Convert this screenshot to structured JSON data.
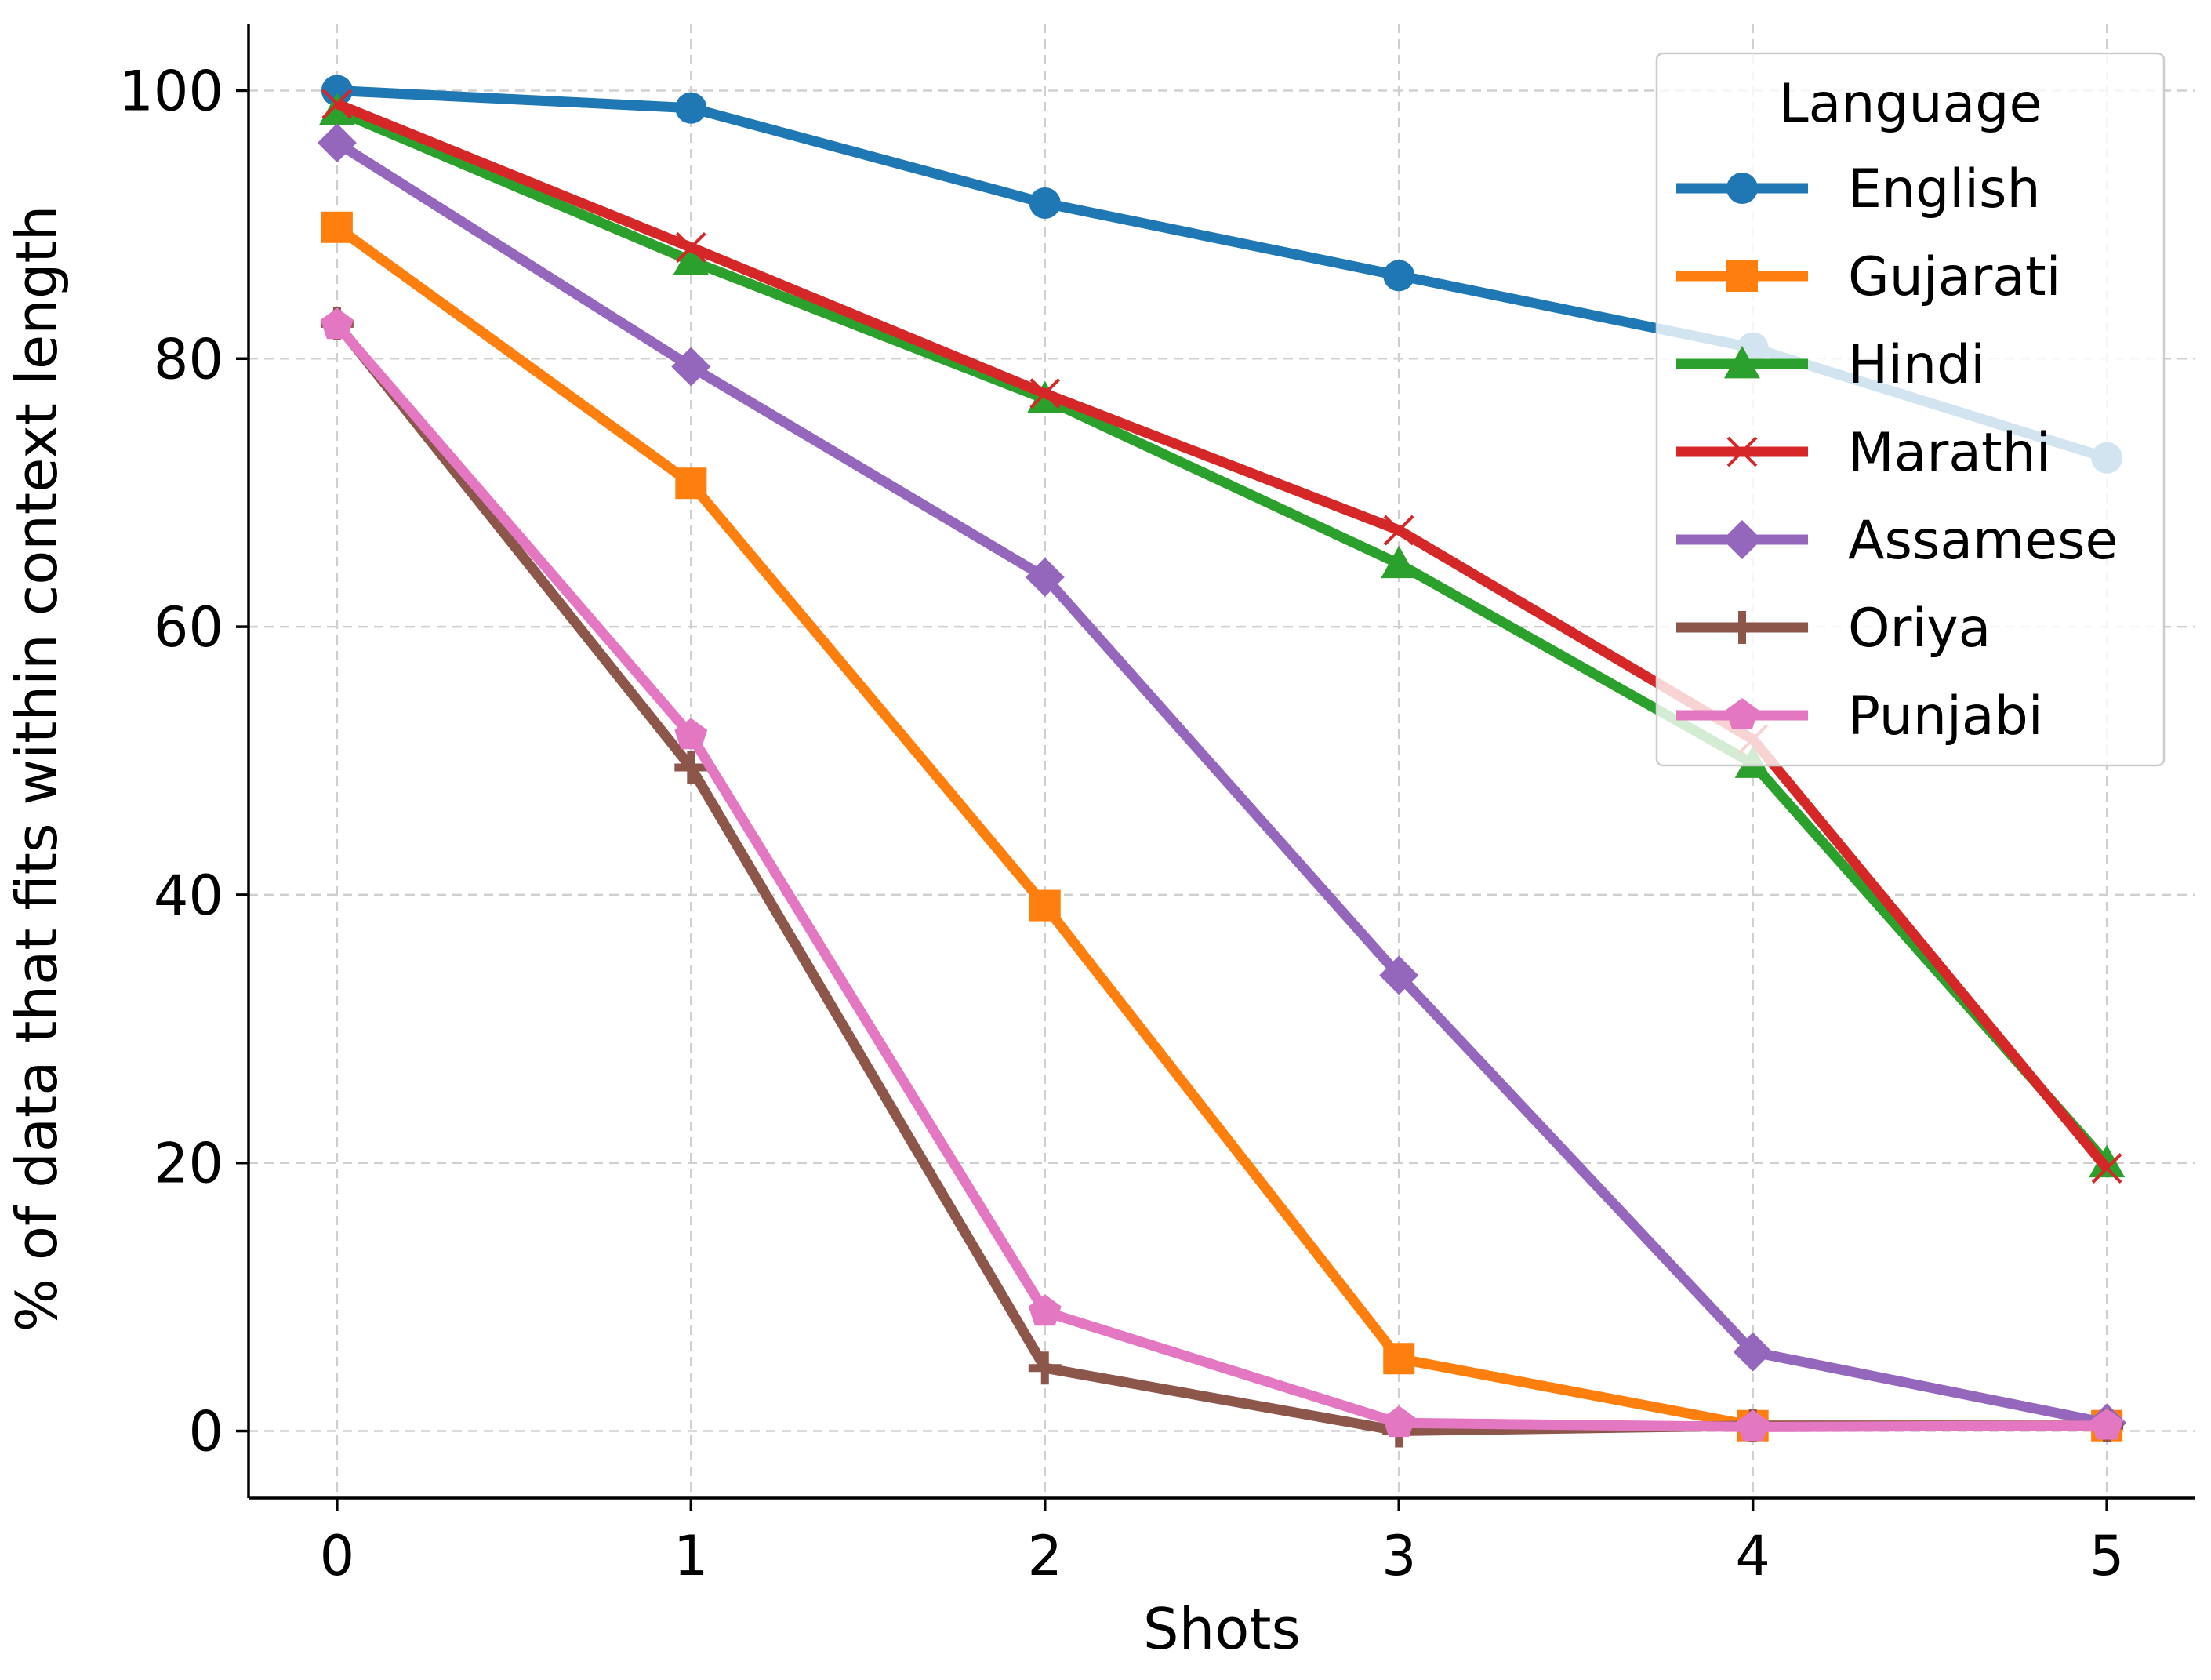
{
  "chart_data": {
    "type": "line",
    "title": "",
    "xlabel": "Shots",
    "ylabel": "% of data that fits within context length",
    "x": [
      0,
      1,
      2,
      3,
      4,
      5
    ],
    "xticks": [
      "0",
      "1",
      "2",
      "3",
      "4",
      "5"
    ],
    "yticks": [
      "0",
      "20",
      "40",
      "60",
      "80",
      "100"
    ],
    "xlim": [
      -0.25,
      5.25
    ],
    "ylim": [
      -5,
      105
    ],
    "grid": true,
    "legend": {
      "title": "Language",
      "placement": "top-right"
    },
    "series": [
      {
        "name": "English",
        "color": "#1f77b4",
        "marker": "circle",
        "values": [
          100,
          98.7,
          91.6,
          86.2,
          80.8,
          72.6
        ]
      },
      {
        "name": "Gujarati",
        "color": "#ff7f0e",
        "marker": "square",
        "values": [
          89.8,
          70.7,
          39.2,
          5.4,
          0.4,
          0.4
        ]
      },
      {
        "name": "Hindi",
        "color": "#2ca02c",
        "marker": "triangle",
        "values": [
          98.5,
          87.3,
          77.0,
          64.7,
          49.8,
          20.0
        ]
      },
      {
        "name": "Marathi",
        "color": "#d62728",
        "marker": "x",
        "values": [
          99.0,
          88.3,
          77.4,
          67.2,
          51.6,
          19.6
        ]
      },
      {
        "name": "Assamese",
        "color": "#9467bd",
        "marker": "diamond",
        "values": [
          96.1,
          79.4,
          63.7,
          34.0,
          5.9,
          0.6
        ]
      },
      {
        "name": "Oriya",
        "color": "#8c564b",
        "marker": "plus",
        "values": [
          82.6,
          49.5,
          4.7,
          0.0,
          0.4,
          0.4
        ]
      },
      {
        "name": "Punjabi",
        "color": "#e377c2",
        "marker": "pentagon",
        "values": [
          82.5,
          51.9,
          8.9,
          0.6,
          0.3,
          0.4
        ]
      }
    ]
  }
}
